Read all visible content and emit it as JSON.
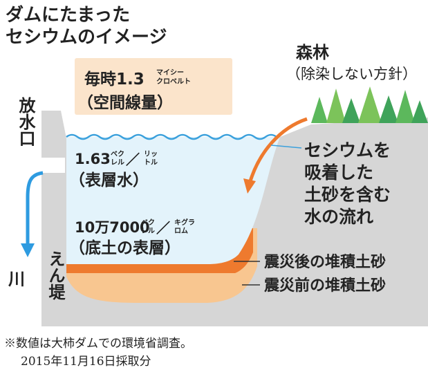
{
  "title": [
    "ダムにたまった",
    "セシウムのイメージ"
  ],
  "air_dose": {
    "value": "毎時1.3",
    "unit_top": "マイシー",
    "unit_bottom": "クロベルト",
    "label": "（空間線量）"
  },
  "surface_water": {
    "value": "1.63",
    "unit1_top": "ベク",
    "unit1_bottom": "レル",
    "slash": "／",
    "unit2_top": "リッ",
    "unit2_bottom": "トル",
    "label": "（表層水）"
  },
  "sediment": {
    "value": "10万7000",
    "unit1_top": "ベク",
    "unit1_bottom": "レル",
    "slash": "／",
    "unit2_top": "キグラ",
    "unit2_bottom": "ロム",
    "label": "（底土の表層）"
  },
  "forest": {
    "title": "森林",
    "note": "（除染しない方針）"
  },
  "outlet": "放水口",
  "river": "川",
  "dam": "えん堤",
  "flow_label": [
    "セシウムを",
    "吸着した",
    "土砂を含む",
    "水の流れ"
  ],
  "layers": [
    "震災後の堆積土砂",
    "震災前の堆積土砂"
  ],
  "footnote": [
    "※数値は大柿ダムでの環境省調査。",
    "2015年11月16日採取分"
  ]
}
